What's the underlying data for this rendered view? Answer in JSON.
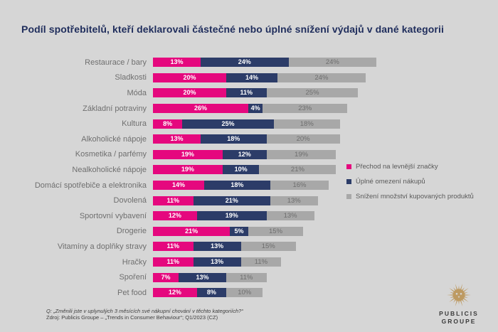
{
  "title": "Podíl spotřebitelů, kteří deklarovali částečné nebo úplné snížení výdajů v dané kategorii",
  "chart_data": {
    "type": "bar",
    "orientation": "horizontal",
    "stacked": true,
    "title": "Podíl spotřebitelů, kteří deklarovali částečné nebo úplné snížení výdajů v dané kategorii",
    "categories": [
      "Restaurace / bary",
      "Sladkosti",
      "Móda",
      "Základní potraviny",
      "Kultura",
      "Alkoholické nápoje",
      "Kosmetika / parfémy",
      "Nealkoholické nápoje",
      "Domácí spotřebiče a elektronika",
      "Dovolená",
      "Sportovní vybavení",
      "Drogerie",
      "Vitamíny a doplňky stravy",
      "Hračky",
      "Spoření",
      "Pet food"
    ],
    "series": [
      {
        "name": "Přechod na levnější značky",
        "color": "#E5087E",
        "values": [
          13,
          20,
          20,
          26,
          8,
          13,
          19,
          19,
          14,
          11,
          12,
          21,
          11,
          11,
          7,
          12
        ]
      },
      {
        "name": "Úplné omezení nákupů",
        "color": "#2C3C68",
        "values": [
          24,
          14,
          11,
          4,
          25,
          18,
          12,
          10,
          18,
          21,
          19,
          5,
          13,
          13,
          13,
          8
        ]
      },
      {
        "name": "Snížení množství kupovaných produktů",
        "color": "#A8A8A8",
        "values": [
          24,
          24,
          25,
          23,
          18,
          20,
          19,
          21,
          16,
          13,
          13,
          15,
          15,
          11,
          11,
          10
        ]
      }
    ],
    "value_suffix": "%",
    "xlim": [
      0,
      61
    ],
    "grid": false,
    "legend_position": "right",
    "bar_value_labels": "inside"
  },
  "footer": {
    "question": "Q: „Změnili jste v uplynulých 3 měsících své nákupní chování v těchto kategoriích?“",
    "source": "Zdroj: Publicis Groupe – „Trends in Consumer Behaviour“; Q1/2023 (CZ)"
  },
  "logo": {
    "icon": "publicis-lion-icon",
    "line1": "PUBLICIS",
    "line2": "GROUPE",
    "icon_color": "#BD9A62"
  },
  "colors": {
    "background": "#D6D6D6",
    "title_text": "#1F2D5C",
    "category_label_text": "#6F6F6F",
    "gray_value_label_text": "#6E6E6E",
    "legend_text": "#5A5A5A",
    "footer_text": "#3F3F3F"
  }
}
